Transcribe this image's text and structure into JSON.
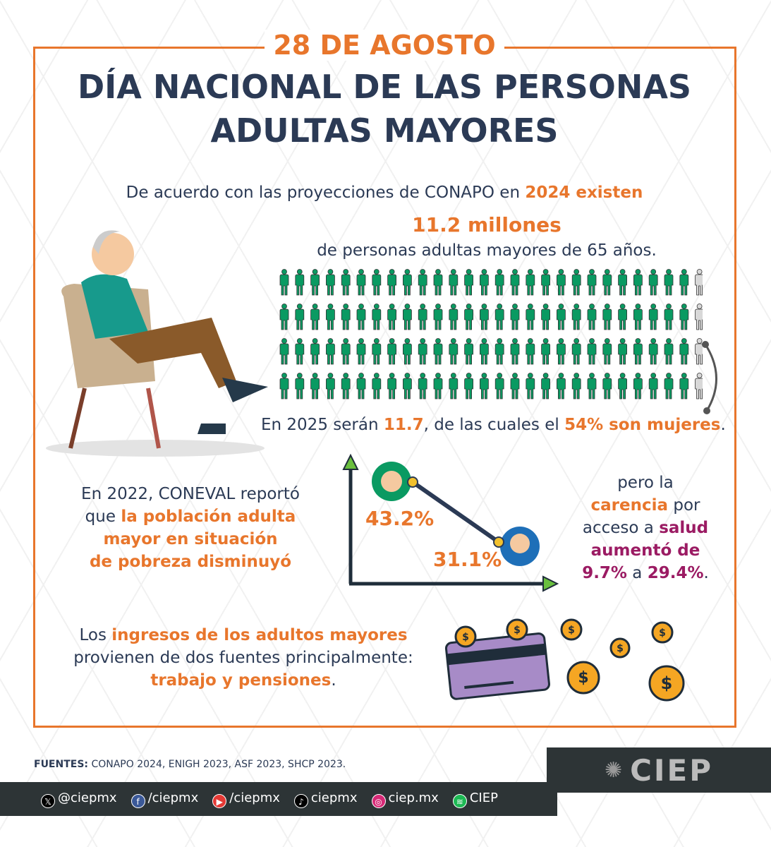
{
  "header": {
    "date": "28 DE AGOSTO",
    "title_line1": "DÍA NACIONAL DE LAS PERSONAS",
    "title_line2": "ADULTAS MAYORES"
  },
  "population": {
    "intro": "De acuerdo con las proyecciones de CONAPO en ",
    "intro_hl": "2024 existen",
    "count": "11.2 millones",
    "desc": "de personas adultas mayores de 65 años.",
    "icons_rows": 4,
    "icons_filled_per_row": 27,
    "icons_empty_per_row": 1,
    "y2025_a": "En 2025 serán ",
    "y2025_b": "11.7",
    "y2025_c": ", de las cuales el ",
    "y2025_d": "54% son mujeres",
    "y2025_e": "."
  },
  "poverty": {
    "a": "En 2022, CONEVAL reportó",
    "b": "que ",
    "c": "la población adulta",
    "d": "mayor en situación",
    "e": "de pobreza disminuyó",
    "v1": "43.2%",
    "v2": "31.1%"
  },
  "health": {
    "a": "pero la",
    "b": "carencia",
    "c": " por",
    "d": "acceso a ",
    "e": "salud",
    "f": "aumentó de",
    "g": "9.7%",
    "h": " a ",
    "i": "29.4%",
    "j": "."
  },
  "income": {
    "a": "Los ",
    "b": "ingresos de los adultos mayores",
    "c": "provienen de dos fuentes principalmente:",
    "d": "trabajo y pensiones",
    "e": "."
  },
  "footer": {
    "src_label": "FUENTES:",
    "src": " CONAPO 2024, ENIGH 2023, ASF 2023, SHCP 2023.",
    "logo": "CIEP",
    "social": [
      {
        "icon": "x-icon",
        "label": "@ciepmx",
        "color": "#000000"
      },
      {
        "icon": "facebook-icon",
        "label": "/ciepmx",
        "color": "#3b5998"
      },
      {
        "icon": "youtube-icon",
        "label": "/ciepmx",
        "color": "#e53935"
      },
      {
        "icon": "tiktok-icon",
        "label": "ciepmx",
        "color": "#000000"
      },
      {
        "icon": "instagram-icon",
        "label": "ciep.mx",
        "color": "#d62976"
      },
      {
        "icon": "spotify-icon",
        "label": "CIEP",
        "color": "#1db954"
      }
    ]
  },
  "colors": {
    "orange": "#e8762c",
    "navy": "#2b3a55",
    "green": "#0a9a62",
    "magenta": "#9b1b63"
  }
}
